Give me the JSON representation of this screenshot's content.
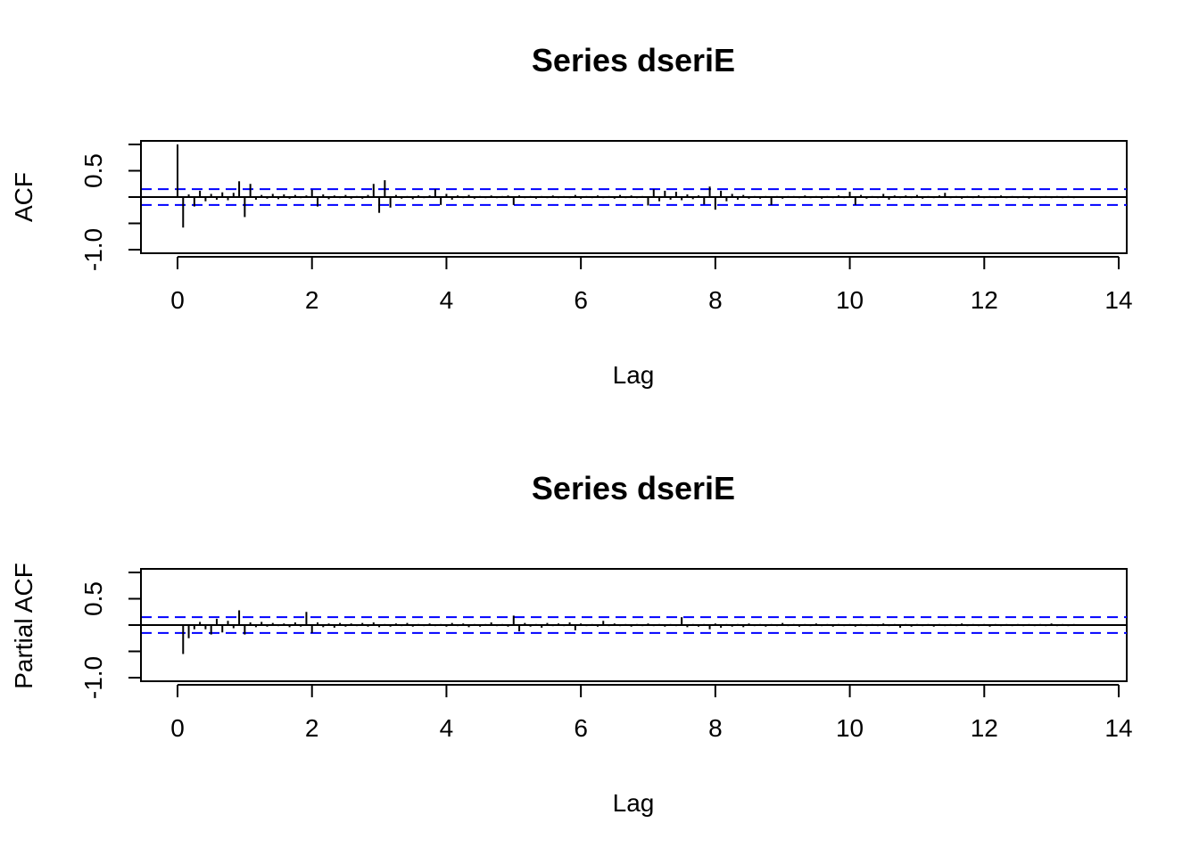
{
  "chart_data": [
    {
      "type": "bar",
      "subtype": "acf",
      "title": "Series  dseriE",
      "xlabel": "Lag",
      "ylabel": "ACF",
      "xlim": [
        -0.5,
        14
      ],
      "ylim": [
        -1.0,
        1.0
      ],
      "xticks": [
        "0",
        "2",
        "4",
        "6",
        "8",
        "10",
        "12",
        "14"
      ],
      "yticks": [
        "-1.0",
        "0.5"
      ],
      "ci": 0.15,
      "ci_color": "#0000ff",
      "lag_step": 0.08333,
      "values": [
        1.0,
        -0.58,
        0.05,
        -0.18,
        0.12,
        -0.08,
        0.06,
        -0.05,
        0.09,
        -0.06,
        0.08,
        0.3,
        -0.38,
        0.25,
        -0.05,
        0.04,
        -0.03,
        0.06,
        -0.04,
        0.05,
        -0.03,
        0.04,
        -0.02,
        0.03,
        0.14,
        -0.18,
        0.05,
        -0.04,
        0.03,
        -0.02,
        0.04,
        -0.03,
        0.02,
        -0.03,
        0.04,
        0.25,
        -0.3,
        0.32,
        -0.2,
        0.04,
        -0.03,
        0.02,
        -0.04,
        0.03,
        -0.02,
        0.03,
        0.15,
        -0.15,
        0.06,
        -0.05,
        0.03,
        -0.02,
        0.04,
        -0.03,
        0.02,
        -0.02,
        0.03,
        -0.02,
        0.02,
        0.03,
        -0.15,
        0.03,
        -0.02,
        0.02,
        -0.03,
        0.02,
        -0.02,
        0.03,
        -0.02,
        0.02,
        -0.02,
        0.04,
        -0.03,
        0.02,
        -0.02,
        0.03,
        -0.02,
        0.02,
        -0.03,
        0.04,
        -0.02,
        0.03,
        -0.02,
        0.02,
        -0.16,
        0.15,
        -0.08,
        0.12,
        -0.05,
        0.1,
        -0.06,
        0.05,
        -0.04,
        0.03,
        -0.14,
        0.2,
        -0.24,
        0.12,
        -0.08,
        0.06,
        -0.05,
        0.04,
        -0.03,
        0.02,
        -0.03,
        0.02,
        -0.15,
        0.02,
        -0.03,
        0.02,
        0.02,
        -0.02,
        0.03,
        -0.02,
        0.02,
        -0.03,
        0.02,
        -0.02,
        0.03,
        -0.02,
        0.1,
        -0.15,
        0.04,
        -0.03,
        0.02,
        -0.02,
        0.06,
        -0.05,
        0.03,
        -0.02,
        0.03,
        -0.02,
        0.04,
        -0.03,
        0.02,
        -0.02,
        0.03,
        0.08,
        -0.02,
        0.02,
        -0.03,
        0.02,
        -0.02,
        0.03,
        -0.02,
        0.02,
        -0.02,
        0.03,
        -0.02,
        0.02,
        -0.02,
        0.02,
        -0.03,
        0.02,
        -0.02,
        0.02,
        -0.02,
        0.02,
        -0.02,
        0.02,
        -0.02
      ]
    },
    {
      "type": "bar",
      "subtype": "pacf",
      "title": "Series  dseriE",
      "xlabel": "Lag",
      "ylabel": "Partial ACF",
      "xlim": [
        -0.5,
        14
      ],
      "ylim": [
        -1.0,
        1.0
      ],
      "xticks": [
        "0",
        "2",
        "4",
        "6",
        "8",
        "10",
        "12",
        "14"
      ],
      "yticks": [
        "-1.0",
        "0.5"
      ],
      "ci": 0.15,
      "ci_color": "#0000ff",
      "lag_start": 0.08333,
      "lag_step": 0.08333,
      "values": [
        -0.55,
        -0.25,
        -0.08,
        0.06,
        -0.08,
        -0.18,
        0.12,
        -0.14,
        0.08,
        -0.06,
        0.28,
        -0.18,
        0.05,
        -0.04,
        0.06,
        -0.03,
        0.04,
        -0.02,
        0.03,
        -0.04,
        0.05,
        -0.03,
        0.25,
        -0.15,
        0.05,
        -0.04,
        0.03,
        -0.05,
        0.04,
        -0.03,
        0.03,
        -0.02,
        0.04,
        -0.03,
        0.05,
        -0.04,
        0.02,
        -0.03,
        0.03,
        -0.02,
        0.04,
        -0.03,
        0.02,
        -0.02,
        0.03,
        -0.02,
        0.02,
        -0.03,
        0.04,
        -0.02,
        0.03,
        -0.04,
        0.02,
        -0.03,
        0.02,
        0.05,
        -0.02,
        0.02,
        -0.03,
        0.18,
        -0.12,
        0.04,
        -0.03,
        0.02,
        -0.05,
        0.04,
        -0.02,
        0.03,
        -0.02,
        0.05,
        -0.1,
        0.03,
        -0.02,
        0.02,
        -0.03,
        0.08,
        -0.02,
        0.03,
        -0.02,
        0.02,
        -0.03,
        0.02,
        -0.02,
        0.03,
        -0.02,
        0.02,
        -0.03,
        0.02,
        -0.02,
        0.15,
        -0.04,
        0.02,
        -0.03,
        0.02,
        -0.08,
        0.03,
        -0.05,
        0.02,
        -0.03,
        0.02,
        -0.04,
        0.03,
        -0.02,
        0.02,
        -0.03,
        0.02,
        -0.02,
        0.04,
        -0.02,
        0.02,
        -0.03,
        0.02,
        -0.02,
        0.03,
        -0.02,
        0.02,
        -0.03,
        0.02,
        -0.02,
        0.02,
        -0.03,
        0.02,
        -0.02,
        0.02,
        -0.02,
        0.03,
        -0.02,
        0.02,
        -0.05,
        0.02,
        -0.03,
        0.02,
        -0.02,
        0.02,
        -0.03,
        0.02,
        -0.02,
        0.02,
        -0.02,
        0.03,
        -0.02,
        0.02,
        -0.02,
        0.02,
        -0.03,
        0.02,
        -0.02,
        0.02,
        -0.02,
        0.02,
        -0.02,
        0.02,
        -0.02,
        0.02,
        -0.02,
        0.03,
        -0.02,
        0.02,
        -0.02,
        0.02
      ]
    }
  ]
}
